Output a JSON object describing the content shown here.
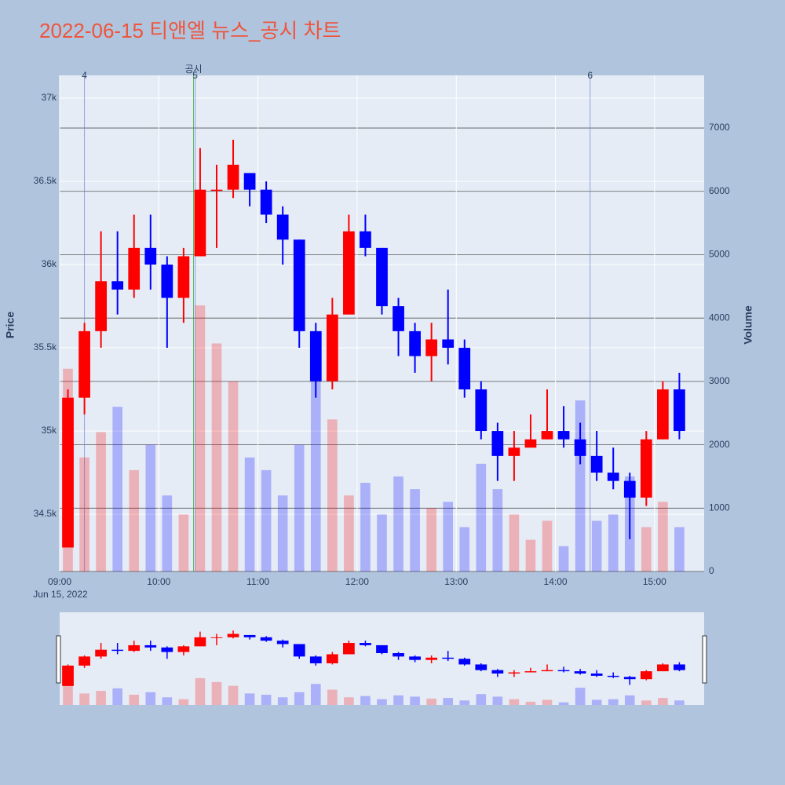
{
  "chart_data": {
    "type": "candlestick",
    "title": "2022-06-15 티앤엘 뉴스_공시 차트",
    "date_label": "Jun 15, 2022",
    "y_title": "Price",
    "y2_title": "Volume",
    "up_color": "#ff0000",
    "down_color": "#0000ff",
    "x": [
      "09:00",
      "09:10",
      "09:20",
      "09:30",
      "09:40",
      "09:50",
      "10:00",
      "10:10",
      "10:20",
      "10:30",
      "10:40",
      "10:50",
      "11:00",
      "11:10",
      "11:20",
      "11:30",
      "11:40",
      "11:50",
      "12:00",
      "12:10",
      "12:20",
      "12:30",
      "12:40",
      "12:50",
      "13:00",
      "13:10",
      "13:20",
      "13:30",
      "13:40",
      "13:50",
      "14:00",
      "14:10",
      "14:20",
      "14:30",
      "14:40",
      "14:50",
      "15:00",
      "15:10"
    ],
    "open": [
      34300,
      35200,
      35600,
      35900,
      35850,
      36100,
      36000,
      35800,
      36050,
      36450,
      36450,
      36550,
      36450,
      36300,
      36150,
      35600,
      35300,
      35700,
      36200,
      36100,
      35750,
      35600,
      35450,
      35550,
      35500,
      35250,
      35000,
      34850,
      34900,
      34950,
      35000,
      34950,
      34850,
      34750,
      34700,
      34600,
      34950,
      35250
    ],
    "high": [
      35250,
      35650,
      36200,
      36200,
      36300,
      36300,
      36050,
      36100,
      36700,
      36600,
      36750,
      36550,
      36500,
      36350,
      36150,
      35650,
      35800,
      36300,
      36300,
      36100,
      35800,
      35650,
      35650,
      35850,
      35550,
      35300,
      35050,
      35000,
      35100,
      35250,
      35150,
      35050,
      35000,
      34900,
      34750,
      35000,
      35300,
      35350
    ],
    "low": [
      34300,
      35100,
      35500,
      35700,
      35800,
      35850,
      35500,
      35650,
      36050,
      36100,
      36400,
      36350,
      36250,
      36000,
      35500,
      35200,
      35250,
      35700,
      36050,
      35700,
      35450,
      35350,
      35300,
      35400,
      35200,
      34950,
      34700,
      34700,
      34900,
      34950,
      34900,
      34800,
      34700,
      34650,
      34350,
      34550,
      34950,
      34950
    ],
    "close": [
      35200,
      35600,
      35900,
      35850,
      36100,
      36000,
      35800,
      36050,
      36450,
      36450,
      36600,
      36450,
      36300,
      36150,
      35600,
      35300,
      35700,
      36200,
      36100,
      35750,
      35600,
      35450,
      35550,
      35500,
      35250,
      35000,
      34850,
      34900,
      34950,
      35000,
      34950,
      34850,
      34750,
      34700,
      34600,
      34950,
      35250,
      35000
    ],
    "volume": [
      3200,
      1800,
      2200,
      2600,
      1600,
      2000,
      1200,
      900,
      4200,
      3600,
      3000,
      1800,
      1600,
      1200,
      2000,
      3300,
      2400,
      1200,
      1400,
      900,
      1500,
      1300,
      1000,
      1100,
      700,
      1700,
      1300,
      900,
      500,
      800,
      400,
      2700,
      800,
      900,
      1500,
      700,
      1100,
      700
    ],
    "xlim": [
      "09:00",
      "15:30"
    ],
    "xticks": [
      "09:00",
      "10:00",
      "11:00",
      "12:00",
      "13:00",
      "14:00",
      "15:00"
    ],
    "ylim": [
      34156,
      37137
    ],
    "yticks": [
      {
        "value": 34500,
        "label": "34.5k"
      },
      {
        "value": 35000,
        "label": "35k"
      },
      {
        "value": 35500,
        "label": "35.5k"
      },
      {
        "value": 36000,
        "label": "36k"
      },
      {
        "value": 36500,
        "label": "36.5k"
      },
      {
        "value": 37000,
        "label": "37k"
      }
    ],
    "y2lim": [
      0,
      7831
    ],
    "y2ticks": [
      0,
      1000,
      2000,
      3000,
      4000,
      5000,
      6000,
      7000
    ],
    "vlines": [
      {
        "x": "09:15",
        "label": "4",
        "color": "#6f7fd8"
      },
      {
        "x": "10:22",
        "label": "5",
        "color": "#6f7fd8"
      },
      {
        "x": "10:21",
        "label": "공시",
        "color": "#2ca02c"
      },
      {
        "x": "14:21",
        "label": "6",
        "color": "#6f7fd8"
      }
    ]
  }
}
